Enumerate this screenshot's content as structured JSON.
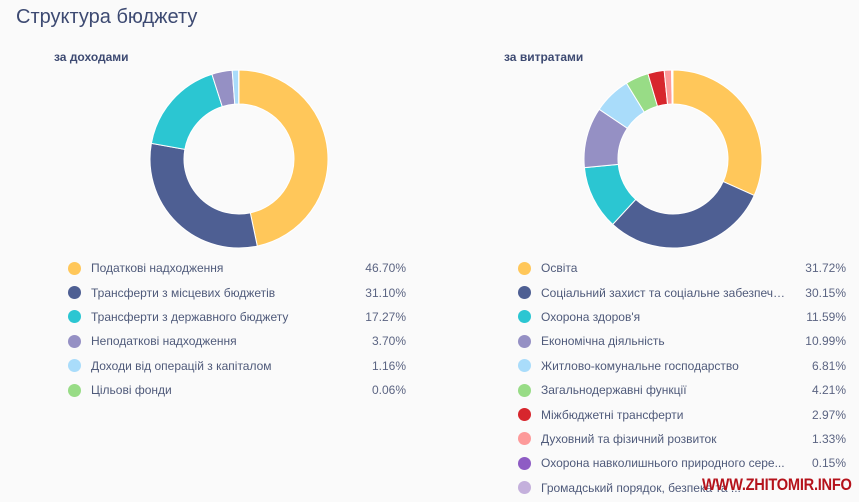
{
  "header": {
    "title": "Структура бюджету"
  },
  "watermark": "WWW.ZHITOMIR.INFO",
  "chart_data": [
    {
      "type": "pie",
      "subtype": "donut",
      "title": "за доходами",
      "legend_position": "bottom",
      "unit": "%",
      "slices": [
        {
          "label": "Податкові надходження",
          "value": 46.7,
          "display": "46.70%",
          "color": "#ffc75a"
        },
        {
          "label": "Трансферти з місцевих бюджетів",
          "value": 31.1,
          "display": "31.10%",
          "color": "#4e5f93"
        },
        {
          "label": "Трансферти з державного бюджету",
          "value": 17.27,
          "display": "17.27%",
          "color": "#2bc6d2"
        },
        {
          "label": "Неподаткові надходження",
          "value": 3.7,
          "display": "3.70%",
          "color": "#9590c4"
        },
        {
          "label": "Доходи від операцій з капіталом",
          "value": 1.16,
          "display": "1.16%",
          "color": "#a9dcfa"
        },
        {
          "label": "Цільові фонди",
          "value": 0.06,
          "display": "0.06%",
          "color": "#98dc86"
        }
      ]
    },
    {
      "type": "pie",
      "subtype": "donut",
      "title": "за витратами",
      "legend_position": "bottom",
      "unit": "%",
      "slices": [
        {
          "label": "Освіта",
          "value": 31.72,
          "display": "31.72%",
          "color": "#ffc75a"
        },
        {
          "label": "Соціальний захист та соціальне забезпече...",
          "value": 30.15,
          "display": "30.15%",
          "color": "#4e5f93"
        },
        {
          "label": "Охорона здоров'я",
          "value": 11.59,
          "display": "11.59%",
          "color": "#2bc6d2"
        },
        {
          "label": "Економічна діяльність",
          "value": 10.99,
          "display": "10.99%",
          "color": "#9590c4"
        },
        {
          "label": "Житлово-комунальне господарство",
          "value": 6.81,
          "display": "6.81%",
          "color": "#a9dcfa"
        },
        {
          "label": "Загальнодержавні функції",
          "value": 4.21,
          "display": "4.21%",
          "color": "#98dc86"
        },
        {
          "label": "Міжбюджетні трансферти",
          "value": 2.97,
          "display": "2.97%",
          "color": "#d7262d"
        },
        {
          "label": "Духовний та фізичний розвиток",
          "value": 1.33,
          "display": "1.33%",
          "color": "#fd9a9a"
        },
        {
          "label": "Охорона навколишнього природного сере...",
          "value": 0.15,
          "display": "0.15%",
          "color": "#8e5cc4"
        },
        {
          "label": "Громадський порядок, безпека та ...",
          "value": 0.1,
          "display": "",
          "color": "#c4b0dc"
        }
      ]
    }
  ]
}
